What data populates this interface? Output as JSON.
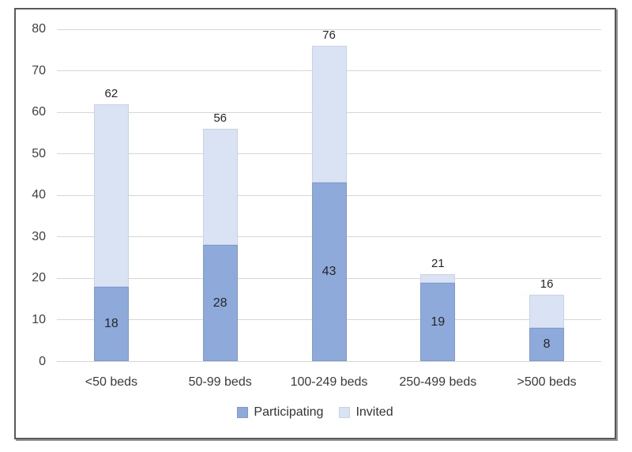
{
  "chart_data": {
    "type": "bar",
    "stacked": true,
    "title": "",
    "xlabel": "",
    "ylabel": "",
    "categories": [
      "<50 beds",
      "50-99 beds",
      "100-249 beds",
      "250-499 beds",
      ">500 beds"
    ],
    "series": [
      {
        "name": "Participating",
        "color": "#8EAADB",
        "border_color": "#7D99D0",
        "values": [
          18,
          28,
          43,
          19,
          8
        ]
      },
      {
        "name": "Invited",
        "color": "#DAE3F3",
        "border_color": "#C6D2EA",
        "values": [
          44,
          28,
          33,
          2,
          8
        ]
      }
    ],
    "total_labels": [
      62,
      56,
      76,
      21,
      16
    ],
    "segment_labels": [
      18,
      28,
      43,
      19,
      8
    ],
    "ylim": [
      0,
      80
    ],
    "y_ticks": [
      0,
      10,
      20,
      30,
      40,
      50,
      60,
      70,
      80
    ],
    "grid": true,
    "legend_position": "bottom",
    "colors": {
      "gridline": "#D6D6D6",
      "tick_text": "#404040",
      "category_text": "#3A3A3A",
      "data_label_text": "#262626",
      "legend_text": "#333333",
      "frame_border": "#595959",
      "background": "#FFFFFF"
    }
  }
}
